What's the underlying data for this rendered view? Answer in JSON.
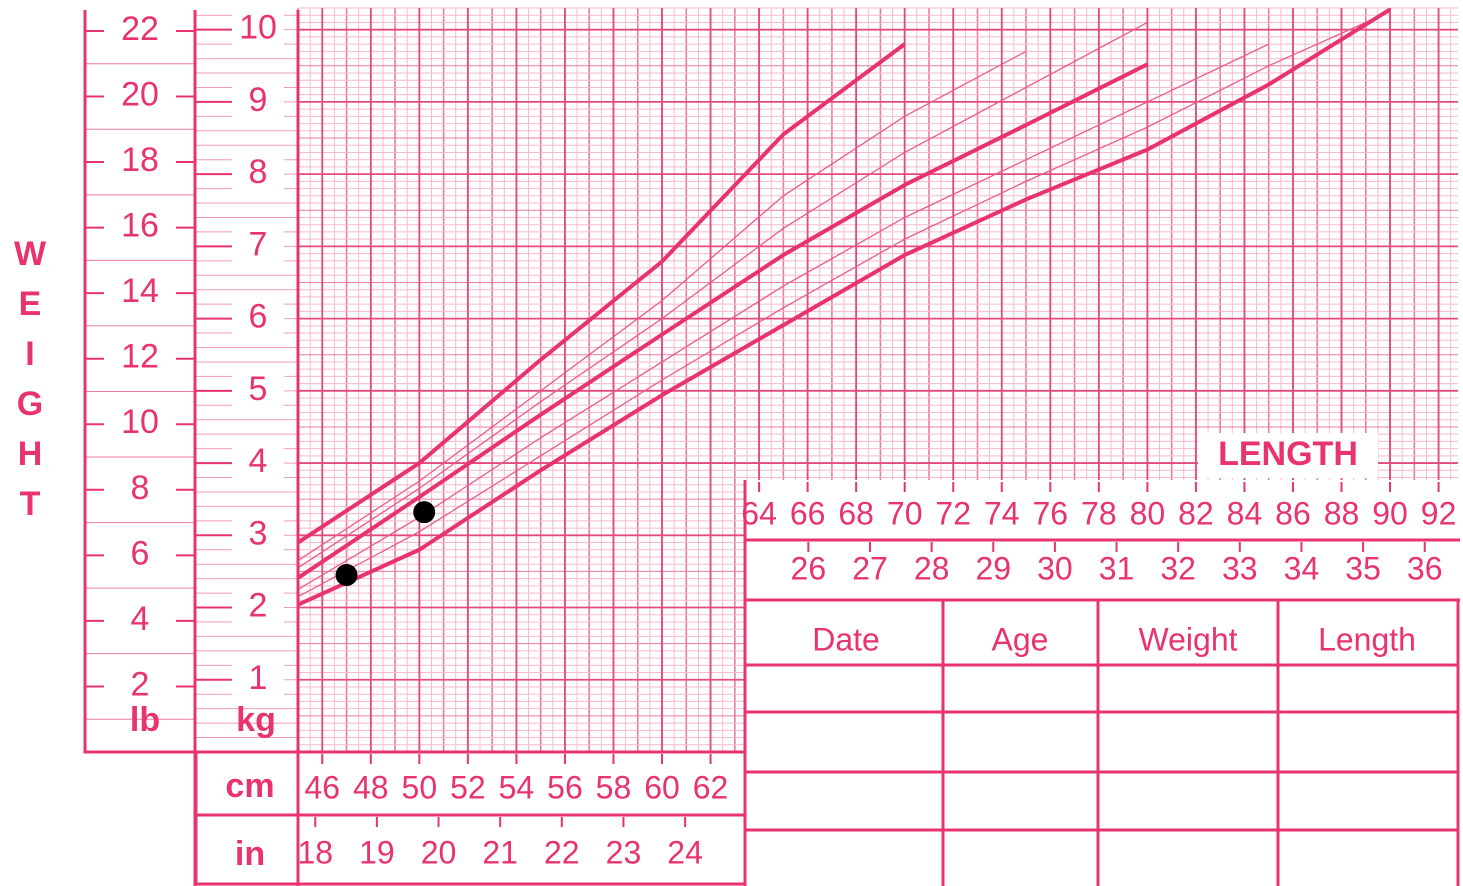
{
  "chart_data": {
    "type": "line",
    "y_label_letters": [
      "W",
      "E",
      "I",
      "G",
      "H",
      "T"
    ],
    "x_label": "LENGTH",
    "y_unit": "kg",
    "y2_unit": "lb",
    "x_unit": "cm",
    "x2_unit": "in",
    "x": [
      45,
      50,
      55,
      60,
      65,
      70,
      75,
      80,
      85,
      90
    ],
    "series": [
      {
        "color": "#e8336f",
        "weight": "bold",
        "values": [
          2.9,
          4.0,
          5.43,
          6.79,
          8.55,
          9.8,
          null,
          null,
          null,
          null
        ]
      },
      {
        "color": "#ec5a8a",
        "weight": "thin",
        "values": [
          2.65,
          3.75,
          5.0,
          6.25,
          7.7,
          8.8,
          9.7,
          null,
          null,
          null
        ]
      },
      {
        "color": "#ec5a8a",
        "weight": "thin",
        "values": [
          2.55,
          3.65,
          4.85,
          6.0,
          7.25,
          8.3,
          9.2,
          10.1,
          null,
          null
        ]
      },
      {
        "color": "#e8336f",
        "weight": "bold",
        "values": [
          2.41,
          3.53,
          4.67,
          5.78,
          6.88,
          7.85,
          8.68,
          9.52,
          null,
          null
        ]
      },
      {
        "color": "#ec5a8a",
        "weight": "thin",
        "values": [
          2.25,
          3.25,
          4.35,
          5.4,
          6.45,
          7.4,
          8.2,
          9.0,
          9.8,
          null
        ]
      },
      {
        "color": "#ec5a8a",
        "weight": "thin",
        "values": [
          2.15,
          3.05,
          4.1,
          5.15,
          6.15,
          7.1,
          7.9,
          8.65,
          9.5,
          10.25
        ]
      },
      {
        "color": "#e8336f",
        "weight": "bold",
        "values": [
          2.04,
          2.8,
          3.9,
          4.94,
          5.91,
          6.88,
          7.65,
          8.34,
          9.24,
          10.28
        ]
      }
    ],
    "points": {
      "color": "#000000",
      "x": [
        47,
        50.2
      ],
      "values": [
        2.45,
        3.32
      ]
    },
    "xlim": [
      45,
      92.8
    ],
    "xticks": [
      46,
      48,
      50,
      52,
      54,
      56,
      58,
      60,
      62,
      64,
      66,
      68,
      70,
      72,
      74,
      76,
      78,
      80,
      82,
      84,
      86,
      88,
      90,
      92
    ],
    "x2lim": [
      17.72,
      36.54
    ],
    "x2ticks": [
      18,
      19,
      20,
      21,
      22,
      23,
      24,
      26,
      27,
      28,
      29,
      30,
      31,
      32,
      33,
      34,
      35,
      36
    ],
    "ylim": [
      0,
      10.3
    ],
    "yticks": [
      1,
      2,
      3,
      4,
      5,
      6,
      7,
      8,
      9,
      10
    ],
    "y2lim": [
      0,
      22.7
    ],
    "y2ticks": [
      2,
      4,
      6,
      8,
      10,
      12,
      14,
      16,
      18,
      20,
      22
    ],
    "grid": true
  },
  "table": {
    "headers": [
      "Date",
      "Age",
      "Weight",
      "Length"
    ]
  }
}
